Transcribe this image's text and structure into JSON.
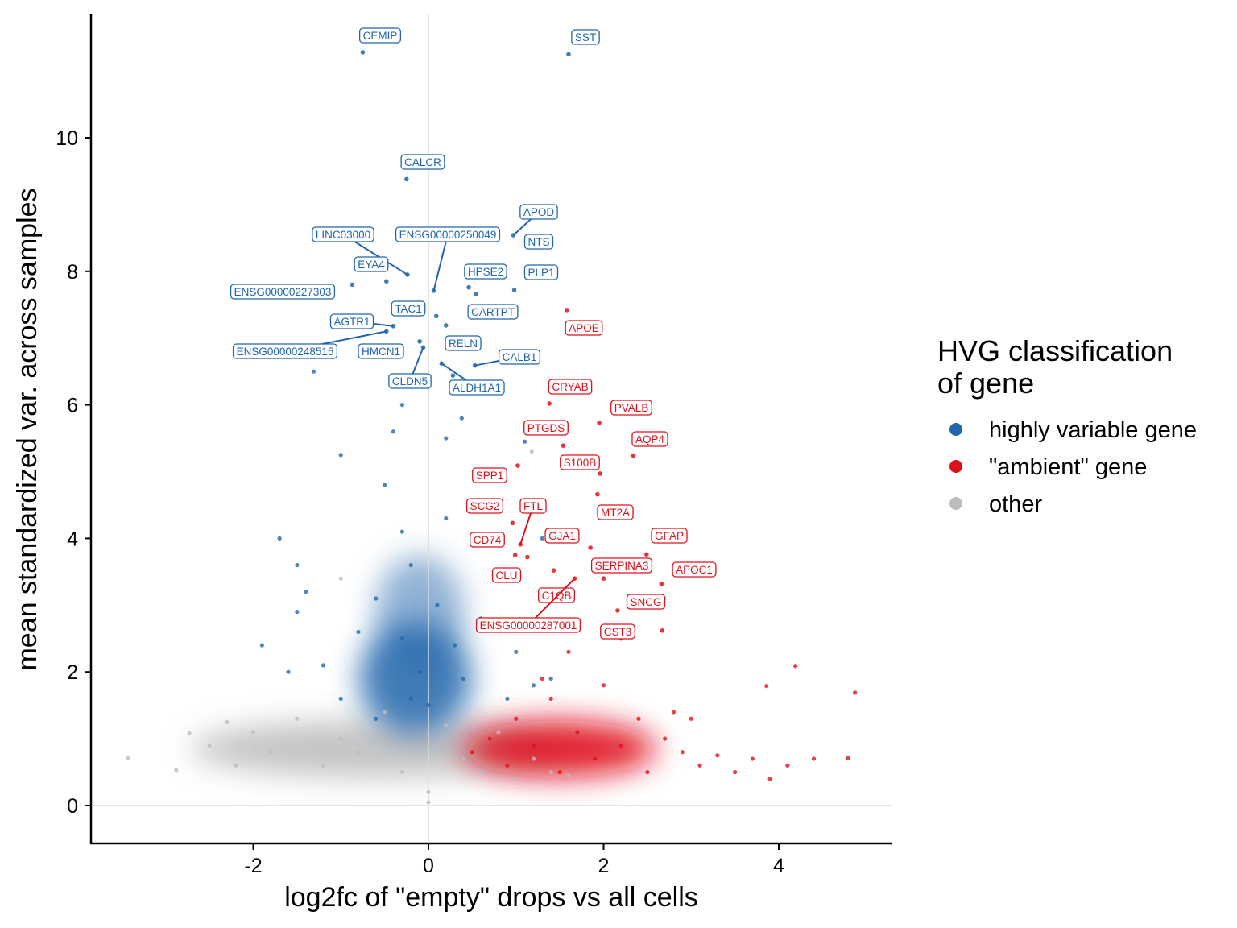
{
  "chart_data": {
    "type": "scatter",
    "title": "",
    "xlabel": "log2fc of \"empty\" drops vs all cells",
    "ylabel": "mean standardized var. across samples",
    "xlim": [
      -3.85,
      5.29
    ],
    "ylim": [
      -0.57,
      11.85
    ],
    "x_ticks": [
      "-2",
      "0",
      "2",
      "4"
    ],
    "y_ticks": [
      "0",
      "2",
      "4",
      "6",
      "8",
      "10"
    ],
    "reference_lines": {
      "x": 0,
      "y": 0
    },
    "grid": false,
    "legend": {
      "title_lines": [
        "HVG classification",
        "of gene"
      ],
      "placement": "right",
      "entries": [
        {
          "name": "highly variable gene",
          "color": "#2166ac"
        },
        {
          "name": "\"ambient\" gene",
          "color": "#e0101a"
        },
        {
          "name": "other",
          "color": "#bdbdbd"
        }
      ]
    },
    "series": [
      {
        "name": "other",
        "color": "#bdbdbd",
        "points": [
          [
            -3.43,
            0.71
          ],
          [
            -2.88,
            0.53
          ],
          [
            -2.73,
            1.08
          ],
          [
            -2.5,
            0.9
          ],
          [
            -2.2,
            0.6
          ],
          [
            -2.0,
            1.1
          ],
          [
            -1.8,
            0.8
          ],
          [
            -1.5,
            1.3
          ],
          [
            -1.2,
            0.6
          ],
          [
            -1.0,
            1.0
          ],
          [
            -0.8,
            0.8
          ],
          [
            -0.5,
            1.4
          ],
          [
            -0.3,
            0.5
          ],
          [
            0,
            0.05
          ],
          [
            0,
            0.2
          ],
          [
            0,
            0.9
          ],
          [
            0.2,
            1.2
          ],
          [
            0.4,
            0.7
          ],
          [
            0.6,
            0.5
          ],
          [
            0.8,
            1.1
          ],
          [
            1.0,
            0.4
          ],
          [
            1.2,
            0.7
          ],
          [
            1.4,
            0.5
          ],
          [
            -1.0,
            3.4
          ],
          [
            1.18,
            5.3
          ],
          [
            -0.6,
            1.3
          ],
          [
            -2.3,
            1.25
          ],
          [
            1.6,
            0.45
          ]
        ]
      },
      {
        "name": "highly variable gene",
        "color": "#2166ac",
        "points": [
          [
            -1.7,
            4.0
          ],
          [
            -1.5,
            3.6
          ],
          [
            -1.4,
            3.2
          ],
          [
            -1.5,
            2.9
          ],
          [
            -1.9,
            2.4
          ],
          [
            -1.6,
            2.0
          ],
          [
            -1.2,
            2.1
          ],
          [
            -1.0,
            1.6
          ],
          [
            -0.8,
            2.6
          ],
          [
            -0.6,
            3.1
          ],
          [
            -0.5,
            4.8
          ],
          [
            -0.3,
            4.1
          ],
          [
            -0.2,
            3.6
          ],
          [
            -0.3,
            2.5
          ],
          [
            -0.1,
            2.0
          ],
          [
            -0.2,
            1.6
          ],
          [
            0.1,
            3.0
          ],
          [
            0.2,
            4.3
          ],
          [
            0.3,
            2.4
          ],
          [
            0.4,
            1.9
          ],
          [
            0.6,
            2.8
          ],
          [
            0.8,
            3.5
          ],
          [
            1.0,
            2.3
          ],
          [
            1.2,
            1.8
          ],
          [
            1.4,
            1.9
          ],
          [
            -1.0,
            5.25
          ],
          [
            -0.4,
            5.6
          ],
          [
            -0.3,
            6.0
          ],
          [
            0.2,
            5.5
          ],
          [
            0.38,
            5.8
          ],
          [
            1.1,
            5.45
          ],
          [
            0.6,
            4.5
          ],
          [
            -0.6,
            1.3
          ],
          [
            0.0,
            1.5
          ],
          [
            0.9,
            1.6
          ],
          [
            1.3,
            4.0
          ],
          [
            -1.31,
            6.5
          ]
        ],
        "labeled": [
          {
            "gene": "CEMIP",
            "x": -0.75,
            "y": 11.28
          },
          {
            "gene": "SST",
            "x": 1.6,
            "y": 11.25
          },
          {
            "gene": "CALCR",
            "x": -0.25,
            "y": 9.38
          },
          {
            "gene": "APOD",
            "x": 0.97,
            "y": 8.54
          },
          {
            "gene": "LINC03000",
            "x": -0.24,
            "y": 7.95
          },
          {
            "gene": "ENSG00000250049",
            "x": 0.06,
            "y": 7.71
          },
          {
            "gene": "NTS",
            "x": 0.54,
            "y": 7.66
          },
          {
            "gene": "EYA4",
            "x": -0.48,
            "y": 7.85
          },
          {
            "gene": "HPSE2",
            "x": 0.46,
            "y": 7.76
          },
          {
            "gene": "PLP1",
            "x": 0.98,
            "y": 7.72
          },
          {
            "gene": "ENSG00000227303",
            "x": -0.87,
            "y": 7.8
          },
          {
            "gene": "TAC1",
            "x": 0.09,
            "y": 7.33
          },
          {
            "gene": "CARTPT",
            "x": 0.2,
            "y": 7.19
          },
          {
            "gene": "AGTR1",
            "x": -0.4,
            "y": 7.18
          },
          {
            "gene": "ENSG00000248515",
            "x": -0.48,
            "y": 7.1
          },
          {
            "gene": "HMCN1",
            "x": -0.1,
            "y": 6.95
          },
          {
            "gene": "CLDN5",
            "x": -0.06,
            "y": 6.86
          },
          {
            "gene": "RELN",
            "x": 0.28,
            "y": 6.44
          },
          {
            "gene": "CALB1",
            "x": 0.53,
            "y": 6.59
          },
          {
            "gene": "ALDH1A1",
            "x": 0.15,
            "y": 6.62
          }
        ]
      },
      {
        "name": "\"ambient\" gene",
        "color": "#e0101a",
        "points": [
          [
            0.5,
            0.8
          ],
          [
            0.7,
            1.0
          ],
          [
            0.9,
            0.6
          ],
          [
            1.0,
            1.3
          ],
          [
            1.2,
            0.9
          ],
          [
            1.4,
            1.6
          ],
          [
            1.5,
            0.5
          ],
          [
            1.7,
            1.1
          ],
          [
            1.9,
            0.7
          ],
          [
            2.0,
            1.8
          ],
          [
            2.2,
            0.9
          ],
          [
            2.4,
            1.3
          ],
          [
            2.5,
            0.5
          ],
          [
            2.7,
            1.0
          ],
          [
            2.9,
            0.8
          ],
          [
            3.1,
            0.6
          ],
          [
            3.3,
            0.75
          ],
          [
            3.5,
            0.5
          ],
          [
            3.7,
            0.7
          ],
          [
            3.9,
            0.4
          ],
          [
            4.1,
            0.6
          ],
          [
            4.4,
            0.7
          ],
          [
            4.79,
            0.71
          ],
          [
            2.2,
            2.5
          ],
          [
            1.6,
            2.3
          ],
          [
            2.8,
            1.4
          ],
          [
            3.0,
            1.3
          ],
          [
            1.3,
            1.9
          ],
          [
            4.19,
            2.09
          ],
          [
            4.87,
            1.69
          ],
          [
            3.86,
            1.79
          ]
        ],
        "labeled": [
          {
            "gene": "APOE",
            "x": 1.58,
            "y": 7.42
          },
          {
            "gene": "CRYAB",
            "x": 1.38,
            "y": 6.02
          },
          {
            "gene": "PVALB",
            "x": 1.95,
            "y": 5.73
          },
          {
            "gene": "PTGDS",
            "x": 1.54,
            "y": 5.39
          },
          {
            "gene": "AQP4",
            "x": 2.34,
            "y": 5.24
          },
          {
            "gene": "S100B",
            "x": 1.96,
            "y": 4.97
          },
          {
            "gene": "SPP1",
            "x": 1.02,
            "y": 5.09
          },
          {
            "gene": "MT2A",
            "x": 1.93,
            "y": 4.66
          },
          {
            "gene": "FTL",
            "x": 1.05,
            "y": 3.91
          },
          {
            "gene": "SCG2",
            "x": 0.96,
            "y": 4.23
          },
          {
            "gene": "CD74",
            "x": 0.99,
            "y": 3.75
          },
          {
            "gene": "GJA1",
            "x": 1.85,
            "y": 3.86
          },
          {
            "gene": "GFAP",
            "x": 2.49,
            "y": 3.76
          },
          {
            "gene": "SERPINA3",
            "x": 2.0,
            "y": 3.4
          },
          {
            "gene": "APOC1",
            "x": 2.66,
            "y": 3.32
          },
          {
            "gene": "CLU",
            "x": 1.13,
            "y": 3.72
          },
          {
            "gene": "C1QB",
            "x": 1.43,
            "y": 3.52
          },
          {
            "gene": "SNCG",
            "x": 2.16,
            "y": 2.92
          },
          {
            "gene": "ENSG00000287001",
            "x": 1.67,
            "y": 3.4
          },
          {
            "gene": "CST3",
            "x": 2.67,
            "y": 2.62
          }
        ]
      }
    ]
  }
}
